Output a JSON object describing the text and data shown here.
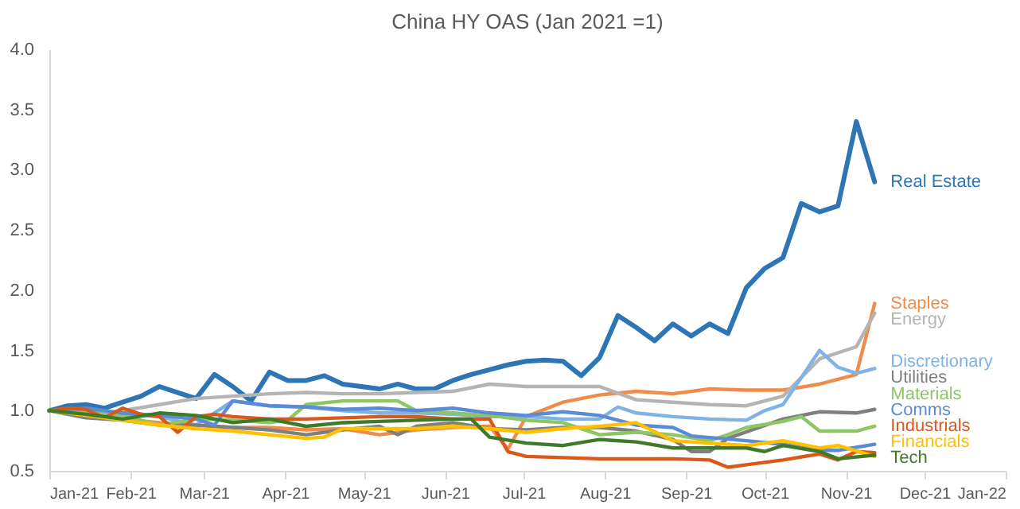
{
  "chart_data": {
    "type": "line",
    "title": "China HY OAS (Jan 2021 =1)",
    "xlim": [
      "2021-01-01",
      "2022-01-01"
    ],
    "xticks": [
      {
        "value": "2021-01-01",
        "label": "Jan-21"
      },
      {
        "value": "2021-02-01",
        "label": "Feb-21"
      },
      {
        "value": "2021-03-01",
        "label": "Mar-21"
      },
      {
        "value": "2021-04-01",
        "label": "Apr-21"
      },
      {
        "value": "2021-05-01",
        "label": "May-21"
      },
      {
        "value": "2021-06-01",
        "label": "Jun-21"
      },
      {
        "value": "2021-07-01",
        "label": "Jul-21"
      },
      {
        "value": "2021-08-01",
        "label": "Aug-21"
      },
      {
        "value": "2021-09-01",
        "label": "Sep-21"
      },
      {
        "value": "2021-10-01",
        "label": "Oct-21"
      },
      {
        "value": "2021-11-01",
        "label": "Nov-21"
      },
      {
        "value": "2021-12-01",
        "label": "Dec-21"
      },
      {
        "value": "2022-01-01",
        "label": "Jan-22"
      }
    ],
    "ylim": [
      0.5,
      4.0
    ],
    "yticks": [
      0.5,
      {
        "value": 1,
        "label": "1.0"
      },
      1.5,
      {
        "value": 2,
        "label": "2.0"
      },
      2.5,
      {
        "value": 3,
        "label": "3.0"
      },
      3.5,
      {
        "value": 4,
        "label": "4.0"
      }
    ],
    "grid": false,
    "marker": "none",
    "line_style": "solid",
    "series": [
      {
        "name": "Real Estate",
        "color": "#2e75b6",
        "x": [
          "2021-01-01",
          "2021-01-08",
          "2021-01-15",
          "2021-01-22",
          "2021-01-29",
          "2021-02-05",
          "2021-02-12",
          "2021-02-19",
          "2021-02-26",
          "2021-03-05",
          "2021-03-12",
          "2021-03-19",
          "2021-03-26",
          "2021-04-02",
          "2021-04-09",
          "2021-04-16",
          "2021-04-23",
          "2021-04-30",
          "2021-05-07",
          "2021-05-14",
          "2021-05-21",
          "2021-05-28",
          "2021-06-04",
          "2021-06-11",
          "2021-06-18",
          "2021-06-25",
          "2021-07-02",
          "2021-07-09",
          "2021-07-16",
          "2021-07-23",
          "2021-07-30",
          "2021-08-06",
          "2021-08-13",
          "2021-08-20",
          "2021-08-27",
          "2021-09-03",
          "2021-09-10",
          "2021-09-17",
          "2021-09-24",
          "2021-10-01",
          "2021-10-08",
          "2021-10-15",
          "2021-10-22",
          "2021-10-29",
          "2021-11-05",
          "2021-11-12"
        ],
        "values": [
          1.0,
          1.04,
          1.05,
          1.02,
          1.07,
          1.12,
          1.2,
          1.15,
          1.1,
          1.3,
          1.2,
          1.08,
          1.32,
          1.25,
          1.25,
          1.29,
          1.22,
          1.2,
          1.18,
          1.22,
          1.18,
          1.18,
          1.25,
          1.3,
          1.34,
          1.38,
          1.41,
          1.42,
          1.41,
          1.29,
          1.44,
          1.79,
          1.69,
          1.58,
          1.72,
          1.62,
          1.72,
          1.64,
          2.02,
          2.18,
          2.27,
          2.72,
          2.65,
          2.7,
          3.4,
          2.9
        ]
      },
      {
        "name": "Staples",
        "color": "#f08c4b",
        "x": [
          "2021-01-01",
          "2021-01-15",
          "2021-01-29",
          "2021-02-12",
          "2021-02-26",
          "2021-03-12",
          "2021-03-26",
          "2021-04-09",
          "2021-04-23",
          "2021-05-07",
          "2021-05-21",
          "2021-06-04",
          "2021-06-18",
          "2021-06-25",
          "2021-07-02",
          "2021-07-16",
          "2021-07-30",
          "2021-08-13",
          "2021-08-27",
          "2021-09-10",
          "2021-09-24",
          "2021-10-08",
          "2021-10-22",
          "2021-11-05",
          "2021-11-12"
        ],
        "values": [
          1.0,
          0.98,
          0.93,
          0.9,
          0.88,
          0.86,
          0.86,
          0.84,
          0.85,
          0.8,
          0.84,
          0.86,
          0.87,
          0.68,
          0.95,
          1.07,
          1.13,
          1.16,
          1.14,
          1.18,
          1.17,
          1.17,
          1.22,
          1.3,
          1.89
        ]
      },
      {
        "name": "Energy",
        "color": "#b4b4b4",
        "x": [
          "2021-01-01",
          "2021-01-15",
          "2021-01-29",
          "2021-02-12",
          "2021-02-26",
          "2021-03-12",
          "2021-03-26",
          "2021-04-09",
          "2021-04-23",
          "2021-05-07",
          "2021-05-21",
          "2021-06-04",
          "2021-06-18",
          "2021-07-02",
          "2021-07-16",
          "2021-07-30",
          "2021-08-13",
          "2021-08-27",
          "2021-09-10",
          "2021-09-24",
          "2021-10-08",
          "2021-10-22",
          "2021-11-05",
          "2021-11-12"
        ],
        "values": [
          1.0,
          0.96,
          1.0,
          1.05,
          1.1,
          1.12,
          1.14,
          1.15,
          1.14,
          1.14,
          1.15,
          1.16,
          1.22,
          1.2,
          1.2,
          1.2,
          1.09,
          1.07,
          1.05,
          1.04,
          1.12,
          1.43,
          1.53,
          1.81
        ]
      },
      {
        "name": "Discretionary",
        "color": "#7fb2e5",
        "x": [
          "2021-01-01",
          "2021-01-15",
          "2021-01-29",
          "2021-02-12",
          "2021-02-26",
          "2021-03-12",
          "2021-03-26",
          "2021-04-09",
          "2021-04-23",
          "2021-05-07",
          "2021-05-21",
          "2021-06-04",
          "2021-06-18",
          "2021-07-02",
          "2021-07-16",
          "2021-07-30",
          "2021-08-06",
          "2021-08-13",
          "2021-08-27",
          "2021-09-10",
          "2021-09-24",
          "2021-10-01",
          "2021-10-08",
          "2021-10-22",
          "2021-10-29",
          "2021-11-05",
          "2021-11-12"
        ],
        "values": [
          1.0,
          1.0,
          0.97,
          0.95,
          0.88,
          1.08,
          1.04,
          1.03,
          1.0,
          0.98,
          0.98,
          0.97,
          0.95,
          0.95,
          0.93,
          0.93,
          1.03,
          0.98,
          0.95,
          0.93,
          0.92,
          1.0,
          1.05,
          1.5,
          1.36,
          1.31,
          1.35
        ]
      },
      {
        "name": "Utilities",
        "color": "#7f7f7f",
        "x": [
          "2021-01-01",
          "2021-01-15",
          "2021-01-29",
          "2021-02-12",
          "2021-02-26",
          "2021-03-12",
          "2021-03-26",
          "2021-04-09",
          "2021-04-23",
          "2021-05-07",
          "2021-05-14",
          "2021-05-21",
          "2021-06-04",
          "2021-06-18",
          "2021-07-02",
          "2021-07-16",
          "2021-07-30",
          "2021-08-13",
          "2021-08-27",
          "2021-09-03",
          "2021-09-10",
          "2021-09-17",
          "2021-10-08",
          "2021-10-22",
          "2021-11-05",
          "2021-11-12"
        ],
        "values": [
          1.0,
          0.94,
          0.92,
          0.88,
          0.88,
          0.86,
          0.84,
          0.8,
          0.84,
          0.87,
          0.8,
          0.87,
          0.9,
          0.85,
          0.84,
          0.86,
          0.86,
          0.83,
          0.76,
          0.66,
          0.66,
          0.77,
          0.93,
          0.99,
          0.98,
          1.01
        ]
      },
      {
        "name": "Materials",
        "color": "#8cc665",
        "x": [
          "2021-01-01",
          "2021-01-15",
          "2021-01-29",
          "2021-02-12",
          "2021-02-26",
          "2021-03-12",
          "2021-03-26",
          "2021-04-02",
          "2021-04-09",
          "2021-04-23",
          "2021-05-07",
          "2021-05-14",
          "2021-05-21",
          "2021-06-04",
          "2021-06-18",
          "2021-07-02",
          "2021-07-16",
          "2021-07-30",
          "2021-08-13",
          "2021-08-27",
          "2021-09-10",
          "2021-09-17",
          "2021-09-24",
          "2021-10-08",
          "2021-10-15",
          "2021-10-22",
          "2021-11-05",
          "2021-11-12"
        ],
        "values": [
          1.0,
          0.98,
          0.96,
          0.88,
          0.93,
          0.92,
          0.9,
          0.92,
          1.05,
          1.08,
          1.08,
          1.08,
          1.0,
          0.98,
          0.96,
          0.92,
          0.9,
          0.8,
          0.82,
          0.8,
          0.75,
          0.8,
          0.86,
          0.91,
          0.95,
          0.83,
          0.83,
          0.87
        ]
      },
      {
        "name": "Comms",
        "color": "#5b8bd6",
        "x": [
          "2021-01-01",
          "2021-01-15",
          "2021-01-29",
          "2021-02-12",
          "2021-02-26",
          "2021-03-05",
          "2021-03-12",
          "2021-03-26",
          "2021-04-09",
          "2021-04-23",
          "2021-05-07",
          "2021-05-21",
          "2021-06-04",
          "2021-06-18",
          "2021-07-02",
          "2021-07-16",
          "2021-07-30",
          "2021-08-13",
          "2021-08-27",
          "2021-09-03",
          "2021-09-24",
          "2021-10-08",
          "2021-10-22",
          "2021-10-29",
          "2021-11-12"
        ],
        "values": [
          1.0,
          1.02,
          0.98,
          0.96,
          0.93,
          0.88,
          1.08,
          1.04,
          1.03,
          1.01,
          1.02,
          1.0,
          1.02,
          0.98,
          0.96,
          0.99,
          0.96,
          0.88,
          0.86,
          0.79,
          0.75,
          0.72,
          0.67,
          0.67,
          0.72
        ]
      },
      {
        "name": "Industrials",
        "color": "#d9591b",
        "x": [
          "2021-01-01",
          "2021-01-08",
          "2021-01-15",
          "2021-01-22",
          "2021-01-29",
          "2021-02-05",
          "2021-02-12",
          "2021-02-19",
          "2021-02-26",
          "2021-03-05",
          "2021-03-12",
          "2021-03-26",
          "2021-04-09",
          "2021-04-23",
          "2021-05-07",
          "2021-05-21",
          "2021-06-04",
          "2021-06-18",
          "2021-06-25",
          "2021-07-02",
          "2021-07-16",
          "2021-07-30",
          "2021-08-27",
          "2021-09-10",
          "2021-09-17",
          "2021-09-24",
          "2021-10-08",
          "2021-10-22",
          "2021-10-29",
          "2021-11-05",
          "2021-11-12"
        ],
        "values": [
          1.0,
          1.02,
          1.01,
          0.94,
          1.02,
          0.97,
          0.95,
          0.82,
          0.95,
          0.97,
          0.95,
          0.93,
          0.93,
          0.94,
          0.95,
          0.95,
          0.93,
          0.93,
          0.66,
          0.62,
          0.61,
          0.6,
          0.6,
          0.59,
          0.53,
          0.55,
          0.59,
          0.64,
          0.59,
          0.66,
          0.65
        ]
      },
      {
        "name": "Financials",
        "color": "#ffc000",
        "x": [
          "2021-01-01",
          "2021-01-15",
          "2021-01-29",
          "2021-02-12",
          "2021-02-26",
          "2021-03-12",
          "2021-03-26",
          "2021-04-09",
          "2021-04-16",
          "2021-04-23",
          "2021-05-07",
          "2021-05-21",
          "2021-06-04",
          "2021-06-18",
          "2021-07-02",
          "2021-07-16",
          "2021-07-30",
          "2021-08-13",
          "2021-08-27",
          "2021-09-10",
          "2021-09-24",
          "2021-10-08",
          "2021-10-22",
          "2021-10-29",
          "2021-11-12"
        ],
        "values": [
          1.0,
          0.96,
          0.92,
          0.88,
          0.85,
          0.83,
          0.8,
          0.77,
          0.78,
          0.85,
          0.85,
          0.85,
          0.87,
          0.85,
          0.82,
          0.85,
          0.87,
          0.9,
          0.75,
          0.73,
          0.71,
          0.75,
          0.69,
          0.71,
          0.62
        ]
      },
      {
        "name": "Tech",
        "color": "#3f7a28",
        "x": [
          "2021-01-01",
          "2021-01-15",
          "2021-01-29",
          "2021-02-12",
          "2021-02-26",
          "2021-03-12",
          "2021-03-26",
          "2021-04-09",
          "2021-04-23",
          "2021-05-07",
          "2021-05-21",
          "2021-06-04",
          "2021-06-11",
          "2021-06-18",
          "2021-07-02",
          "2021-07-16",
          "2021-07-30",
          "2021-08-13",
          "2021-08-27",
          "2021-09-24",
          "2021-10-01",
          "2021-10-08",
          "2021-10-22",
          "2021-10-29",
          "2021-11-12"
        ],
        "values": [
          1.0,
          0.97,
          0.93,
          0.98,
          0.96,
          0.9,
          0.93,
          0.87,
          0.9,
          0.91,
          0.92,
          0.93,
          0.93,
          0.78,
          0.73,
          0.71,
          0.76,
          0.74,
          0.69,
          0.69,
          0.66,
          0.71,
          0.66,
          0.6,
          0.63
        ]
      }
    ]
  }
}
